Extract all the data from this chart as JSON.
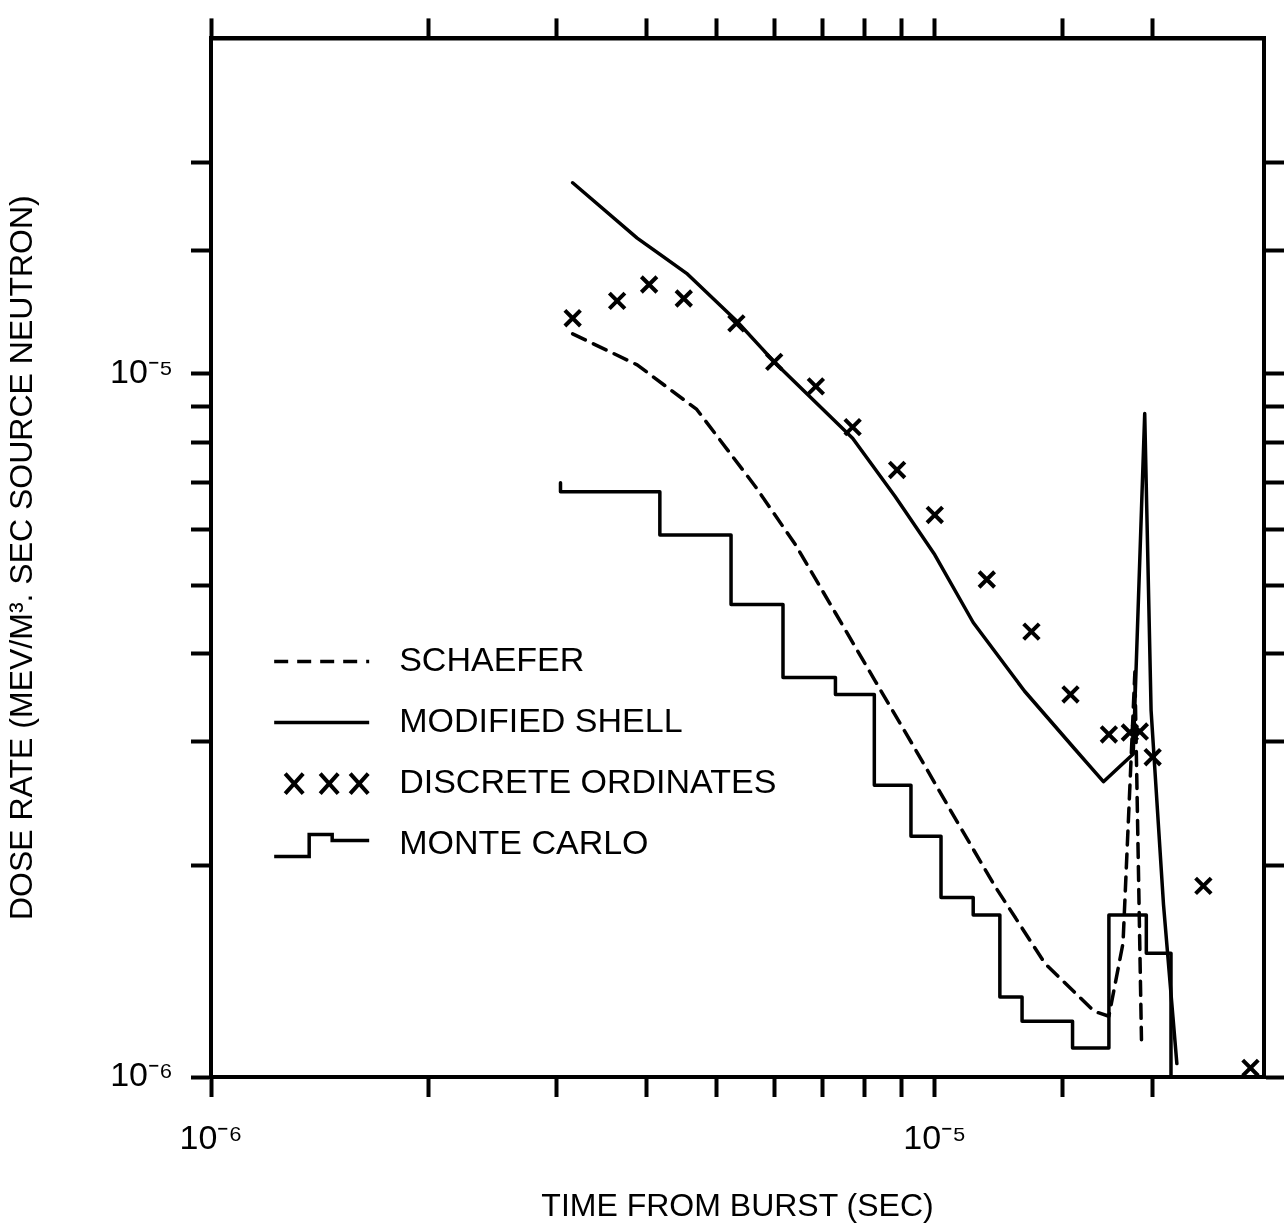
{
  "chart_data": {
    "type": "line",
    "xlabel": "TIME FROM BURST (SEC)",
    "ylabel": "DOSE RATE (MEV/M³. SEC SOURCE NEUTRON)",
    "log": "xy",
    "xlim": [
      1e-06,
      2.85e-05
    ],
    "ylim": [
      1e-06,
      3e-05
    ],
    "xticks": [
      {
        "value": 1e-06,
        "label": "10⁻⁶"
      },
      {
        "value": 1e-05,
        "label": "10⁻⁵"
      }
    ],
    "yticks": [
      {
        "value": 1e-06,
        "label": "10⁻⁶"
      },
      {
        "value": 1e-05,
        "label": "10⁻⁵"
      }
    ],
    "grid": false,
    "legend": "center left",
    "series": [
      {
        "name": "SCHAEFER",
        "type": "line",
        "line_style": "dashed",
        "marker": "none",
        "color": "#000000",
        "x": [
          3.16e-06,
          3.88e-06,
          4.69e-06,
          5.66e-06,
          6.43e-06,
          7.29e-06,
          8.27e-06,
          9.39e-06,
          1.065e-05,
          1.21e-05,
          1.42e-05,
          1.66e-05,
          1.74e-05,
          1.82e-05,
          1.89e-05,
          1.93e-05
        ],
        "values": [
          1.14e-05,
          1.03e-05,
          8.9e-06,
          6.9e-06,
          5.7e-06,
          4.57e-06,
          3.66e-06,
          2.93e-06,
          2.34e-06,
          1.87e-06,
          1.45e-06,
          1.24e-06,
          1.22e-06,
          1.55e-06,
          3.77e-06,
          1.13e-06
        ]
      },
      {
        "name": "MODIFIED SHELL",
        "type": "line",
        "line_style": "solid",
        "marker": "none",
        "color": "#000000",
        "x": [
          3.16e-06,
          3.88e-06,
          4.54e-06,
          5.32e-06,
          6e-06,
          7.7e-06,
          8.81e-06,
          1e-05,
          1.13e-05,
          1.33e-05,
          1.56e-05,
          1.71e-05,
          1.88e-05,
          1.95e-05,
          1.99e-05,
          2.07e-05,
          2.16e-05
        ],
        "values": [
          1.87e-05,
          1.56e-05,
          1.39e-05,
          1.19e-05,
          1.04e-05,
          8.1e-06,
          6.7e-06,
          5.53e-06,
          4.43e-06,
          3.54e-06,
          2.93e-06,
          2.63e-06,
          2.88e-06,
          8.78e-06,
          3.32e-06,
          1.76e-06,
          1.045e-06
        ]
      },
      {
        "name": "DISCRETE ORDINATES",
        "type": "scatter",
        "marker": "cross",
        "color": "#000000",
        "x": [
          3.16e-06,
          3.64e-06,
          4.03e-06,
          4.5e-06,
          5.32e-06,
          6e-06,
          6.85e-06,
          7.7e-06,
          8.87e-06,
          1e-05,
          1.18e-05,
          1.36e-05,
          1.54e-05,
          1.74e-05,
          1.86e-05,
          1.92e-05,
          2e-05,
          2.35e-05,
          2.73e-05
        ],
        "values": [
          1.2e-05,
          1.27e-05,
          1.34e-05,
          1.28e-05,
          1.18e-05,
          1.04e-05,
          9.6e-06,
          8.4e-06,
          7.3e-06,
          6.3e-06,
          5.1e-06,
          4.3e-06,
          3.5e-06,
          3.07e-06,
          3.09e-06,
          3.1e-06,
          2.85e-06,
          1.87e-06,
          1.03e-06
        ]
      },
      {
        "name": "MONTE CARLO",
        "type": "step",
        "line_style": "solid",
        "marker": "none",
        "color": "#000000",
        "x": [
          3.04e-06,
          4.17e-06,
          5.23e-06,
          6.17e-06,
          7.29e-06,
          8.25e-06,
          9.27e-06,
          1.02e-05,
          1.13e-05,
          1.23e-05,
          1.32e-05,
          1.55e-05,
          1.74e-05,
          1.96e-05,
          2.12e-05,
          2.32e-05
        ],
        "values": [
          7e-06,
          6.8e-06,
          5.9e-06,
          4.7e-06,
          3.7e-06,
          3.5e-06,
          2.6e-06,
          2.2e-06,
          1.8e-06,
          1.7e-06,
          1.3e-06,
          1.2e-06,
          1.1e-06,
          1.7e-06,
          1.5e-06,
          1e-06
        ]
      }
    ]
  }
}
